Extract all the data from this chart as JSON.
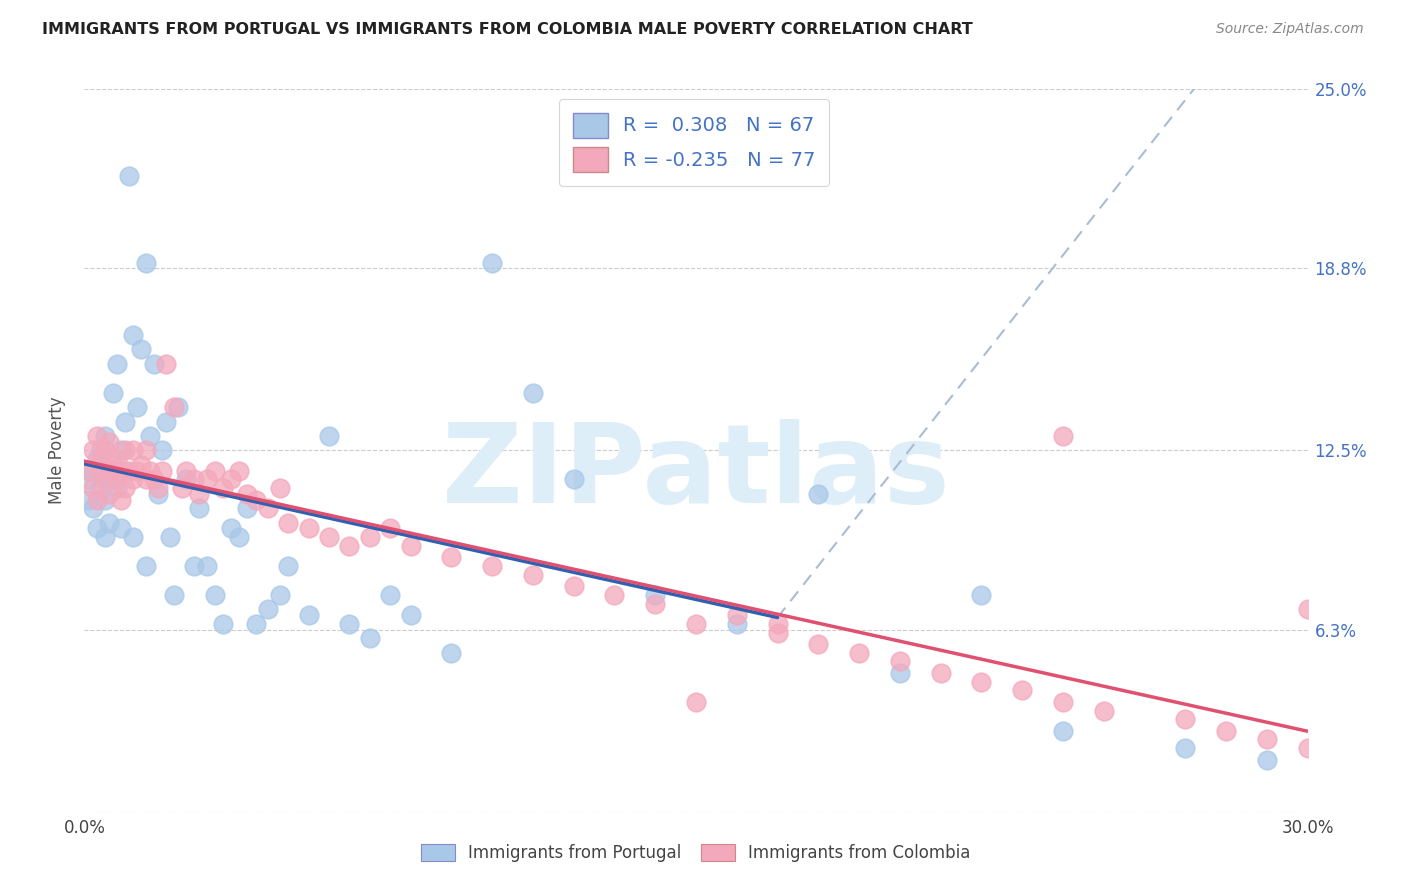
{
  "title": "IMMIGRANTS FROM PORTUGAL VS IMMIGRANTS FROM COLOMBIA MALE POVERTY CORRELATION CHART",
  "source": "Source: ZipAtlas.com",
  "ylabel": "Male Poverty",
  "xlim": [
    0.0,
    0.3
  ],
  "ylim": [
    0.0,
    0.25
  ],
  "portugal_color": "#a8c8e8",
  "colombia_color": "#f4a8bc",
  "portugal_line_color": "#3060b0",
  "colombia_line_color": "#e05070",
  "dashed_line_color": "#aabbd4",
  "R_portugal": 0.308,
  "N_portugal": 67,
  "R_colombia": -0.235,
  "N_colombia": 77,
  "portugal_scatter_x": [
    0.001,
    0.001,
    0.002,
    0.002,
    0.003,
    0.003,
    0.004,
    0.004,
    0.005,
    0.005,
    0.005,
    0.006,
    0.006,
    0.007,
    0.007,
    0.008,
    0.008,
    0.009,
    0.009,
    0.01,
    0.01,
    0.011,
    0.012,
    0.012,
    0.013,
    0.014,
    0.015,
    0.015,
    0.016,
    0.017,
    0.018,
    0.019,
    0.02,
    0.021,
    0.022,
    0.023,
    0.025,
    0.027,
    0.028,
    0.03,
    0.032,
    0.034,
    0.036,
    0.038,
    0.04,
    0.042,
    0.045,
    0.048,
    0.05,
    0.055,
    0.06,
    0.065,
    0.07,
    0.075,
    0.08,
    0.09,
    0.1,
    0.11,
    0.12,
    0.14,
    0.16,
    0.18,
    0.2,
    0.22,
    0.24,
    0.27,
    0.29
  ],
  "portugal_scatter_y": [
    0.115,
    0.108,
    0.118,
    0.105,
    0.122,
    0.098,
    0.112,
    0.125,
    0.095,
    0.13,
    0.108,
    0.115,
    0.1,
    0.118,
    0.145,
    0.112,
    0.155,
    0.125,
    0.098,
    0.118,
    0.135,
    0.22,
    0.165,
    0.095,
    0.14,
    0.16,
    0.19,
    0.085,
    0.13,
    0.155,
    0.11,
    0.125,
    0.135,
    0.095,
    0.075,
    0.14,
    0.115,
    0.085,
    0.105,
    0.085,
    0.075,
    0.065,
    0.098,
    0.095,
    0.105,
    0.065,
    0.07,
    0.075,
    0.085,
    0.068,
    0.13,
    0.065,
    0.06,
    0.075,
    0.068,
    0.055,
    0.19,
    0.145,
    0.115,
    0.075,
    0.065,
    0.11,
    0.048,
    0.075,
    0.028,
    0.022,
    0.018
  ],
  "colombia_scatter_x": [
    0.001,
    0.002,
    0.002,
    0.003,
    0.003,
    0.004,
    0.004,
    0.005,
    0.005,
    0.006,
    0.006,
    0.007,
    0.007,
    0.008,
    0.008,
    0.009,
    0.009,
    0.01,
    0.01,
    0.011,
    0.012,
    0.012,
    0.013,
    0.014,
    0.015,
    0.015,
    0.016,
    0.017,
    0.018,
    0.019,
    0.02,
    0.022,
    0.024,
    0.025,
    0.027,
    0.028,
    0.03,
    0.032,
    0.034,
    0.036,
    0.038,
    0.04,
    0.042,
    0.045,
    0.048,
    0.05,
    0.055,
    0.06,
    0.065,
    0.07,
    0.075,
    0.08,
    0.09,
    0.1,
    0.11,
    0.12,
    0.13,
    0.14,
    0.15,
    0.16,
    0.17,
    0.18,
    0.19,
    0.2,
    0.21,
    0.22,
    0.23,
    0.24,
    0.25,
    0.27,
    0.28,
    0.29,
    0.3,
    0.15,
    0.17,
    0.24,
    0.3
  ],
  "colombia_scatter_y": [
    0.118,
    0.125,
    0.112,
    0.13,
    0.108,
    0.118,
    0.122,
    0.115,
    0.125,
    0.11,
    0.128,
    0.118,
    0.12,
    0.115,
    0.122,
    0.108,
    0.118,
    0.125,
    0.112,
    0.118,
    0.115,
    0.125,
    0.118,
    0.12,
    0.115,
    0.125,
    0.118,
    0.115,
    0.112,
    0.118,
    0.155,
    0.14,
    0.112,
    0.118,
    0.115,
    0.11,
    0.115,
    0.118,
    0.112,
    0.115,
    0.118,
    0.11,
    0.108,
    0.105,
    0.112,
    0.1,
    0.098,
    0.095,
    0.092,
    0.095,
    0.098,
    0.092,
    0.088,
    0.085,
    0.082,
    0.078,
    0.075,
    0.072,
    0.065,
    0.068,
    0.062,
    0.058,
    0.055,
    0.052,
    0.048,
    0.045,
    0.042,
    0.038,
    0.035,
    0.032,
    0.028,
    0.025,
    0.022,
    0.038,
    0.065,
    0.13,
    0.07
  ],
  "background_color": "#ffffff",
  "grid_color": "#cccccc",
  "watermark_text": "ZIPatlas",
  "watermark_color": "#ddeef8",
  "figsize": [
    14.06,
    8.92
  ],
  "dpi": 100,
  "ytick_positions": [
    0.0,
    0.063,
    0.125,
    0.188,
    0.25
  ],
  "ytick_labels": [
    "",
    "6.3%",
    "12.5%",
    "18.8%",
    "25.0%"
  ],
  "xtick_positions": [
    0.0,
    0.05,
    0.1,
    0.15,
    0.2,
    0.25,
    0.3
  ],
  "xtick_labels": [
    "0.0%",
    "",
    "",
    "",
    "",
    "",
    "30.0%"
  ]
}
